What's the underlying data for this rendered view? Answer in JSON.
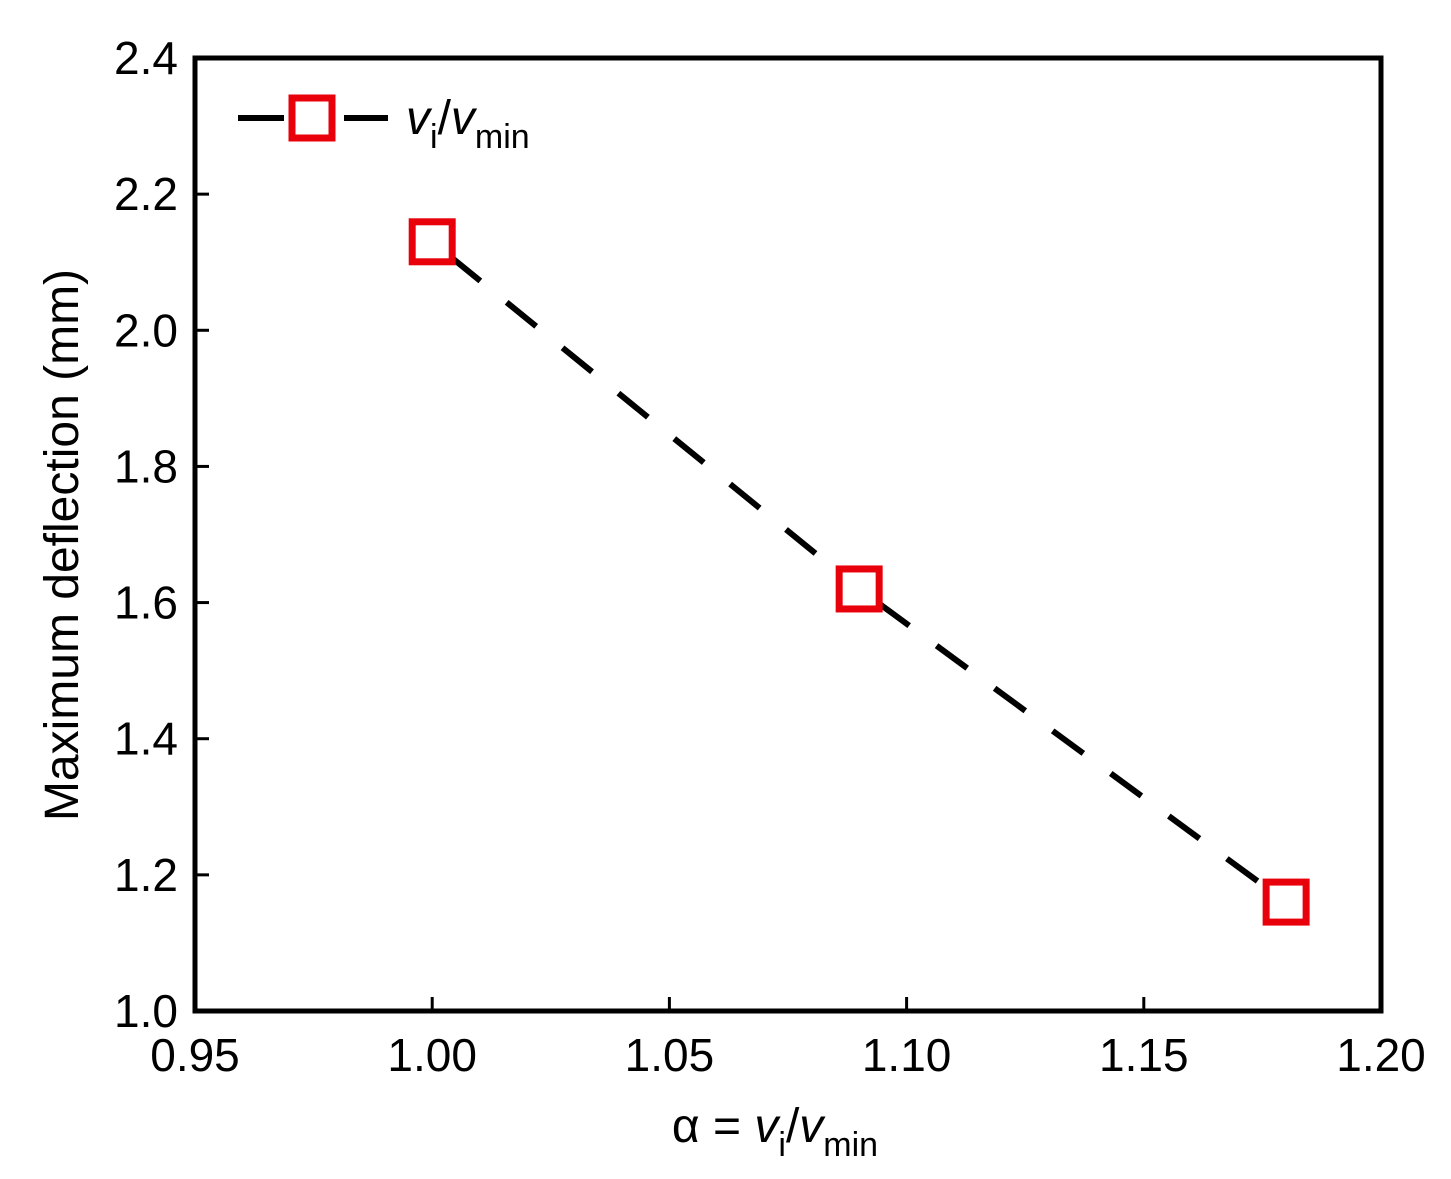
{
  "chart_data": {
    "type": "line",
    "title": "",
    "xlabel": {
      "prefix": "α = ",
      "numerator_var": "v",
      "numerator_sub": "i",
      "slash": "/",
      "denominator_var": "v",
      "denominator_sub": "min"
    },
    "ylabel": "Maximum deflection (mm)",
    "xlim": [
      0.95,
      1.2
    ],
    "ylim": [
      1.0,
      2.4
    ],
    "x_ticks": [
      0.95,
      1.0,
      1.05,
      1.1,
      1.15,
      1.2
    ],
    "x_tick_labels": [
      "0.95",
      "1.00",
      "1.05",
      "1.10",
      "1.15",
      "1.20"
    ],
    "y_ticks": [
      1.0,
      1.2,
      1.4,
      1.6,
      1.8,
      2.0,
      2.2,
      2.4
    ],
    "y_tick_labels": [
      "1.0",
      "1.2",
      "1.4",
      "1.6",
      "1.8",
      "2.0",
      "2.2",
      "2.4"
    ],
    "grid": false,
    "legend_position": "top-left",
    "series": [
      {
        "name": "vi/vmin",
        "legend": {
          "var": "v",
          "sub": "i",
          "slash": "/",
          "var2": "v",
          "sub2": "min"
        },
        "x": [
          1.0,
          1.09,
          1.18
        ],
        "y": [
          2.13,
          1.62,
          1.16
        ],
        "line_color": "#000000",
        "line_style": "dashed",
        "marker": "open-square",
        "marker_color": "#e8000b"
      }
    ]
  }
}
